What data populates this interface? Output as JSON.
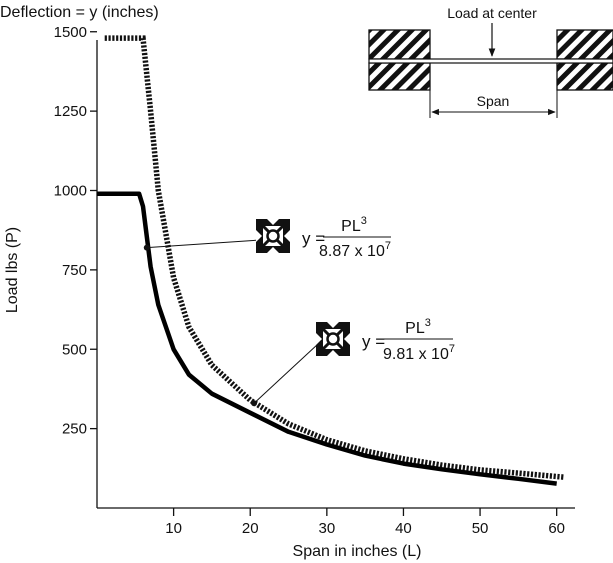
{
  "chart_data": {
    "type": "line",
    "title": "Deflection = y (inches)",
    "xlabel": "Span in inches (L)",
    "ylabel": "Load lbs (P)",
    "xlim": [
      0,
      62
    ],
    "ylim": [
      0,
      1600
    ],
    "xticks": [
      10,
      20,
      30,
      40,
      50,
      60
    ],
    "yticks": [
      250,
      500,
      750,
      1000,
      1250,
      1500
    ],
    "grid": false,
    "series": [
      {
        "style": "dotted",
        "x": [
          1,
          6,
          7,
          8,
          10,
          12,
          15,
          20,
          25,
          30,
          35,
          40,
          45,
          50,
          55,
          61
        ],
        "y": [
          1480,
          1480,
          1250,
          1000,
          725,
          570,
          450,
          340,
          265,
          215,
          180,
          155,
          135,
          120,
          110,
          97
        ],
        "annotation": {
          "prefix": "y =",
          "numerator": "PL",
          "numerator_exp": "3",
          "denominator": "9.81 x 10",
          "denominator_exp": "7",
          "point": [
            20.5,
            330
          ]
        }
      },
      {
        "style": "solid",
        "x": [
          0,
          5.5,
          6,
          7,
          8,
          10,
          12,
          15,
          20,
          25,
          30,
          35,
          40,
          45,
          50,
          55,
          60
        ],
        "y": [
          990,
          990,
          950,
          760,
          640,
          500,
          420,
          360,
          300,
          240,
          200,
          165,
          140,
          122,
          106,
          92,
          77
        ],
        "annotation": {
          "prefix": "y =",
          "numerator": "PL",
          "numerator_exp": "3",
          "denominator": "8.87 x 10",
          "denominator_exp": "7",
          "point": [
            6.5,
            820
          ]
        }
      }
    ]
  },
  "diagram": {
    "load_label": "Load at center",
    "span_label": "Span"
  },
  "icons": [
    "extrusion-profile-icon"
  ]
}
